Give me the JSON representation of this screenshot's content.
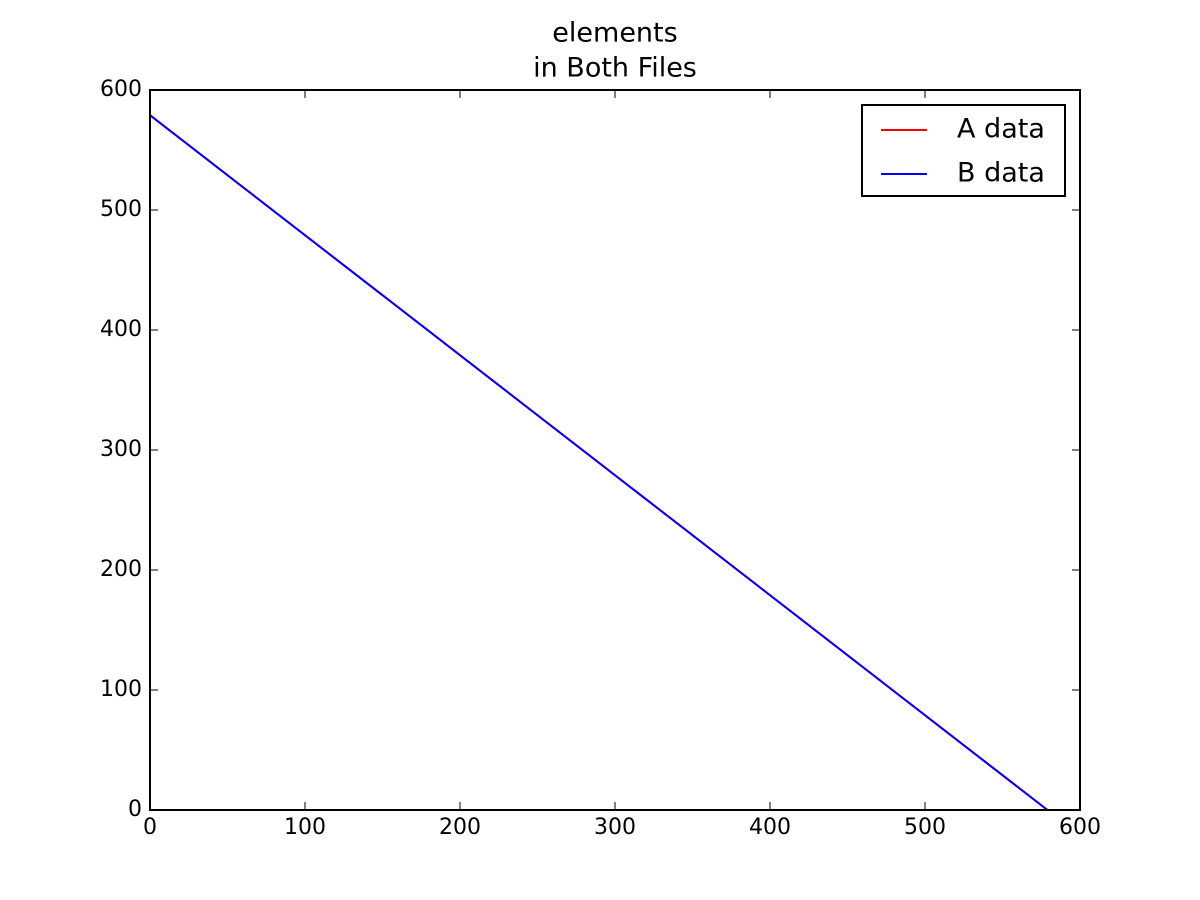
{
  "chart_data": {
    "type": "line",
    "title": [
      "elements",
      "in Both Files"
    ],
    "series": [
      {
        "name": "A data",
        "color": "#ff0000",
        "x": [
          0,
          579
        ],
        "values": [
          579,
          0
        ]
      },
      {
        "name": "B data",
        "color": "#0000ff",
        "x": [
          0,
          579
        ],
        "values": [
          579,
          0
        ]
      }
    ],
    "xlim": [
      0,
      600
    ],
    "xticks": [
      0,
      100,
      200,
      300,
      400,
      500,
      600
    ],
    "ylim": [
      0,
      600
    ],
    "yticks": [
      0,
      100,
      200,
      300,
      400,
      500,
      600
    ],
    "grid": false,
    "legend": "upper right"
  }
}
